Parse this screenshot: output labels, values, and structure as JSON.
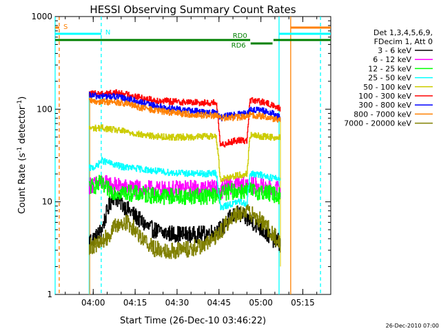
{
  "chart_data": {
    "type": "line",
    "title": "HESSI Observing Summary Count Rates",
    "xlabel": "Start Time (26-Dec-10 03:46:22)",
    "ylabel_main": "Count Rate (s",
    "ylabel_sup1": "-1",
    "ylabel_mid": " detector",
    "ylabel_sup2": "-1",
    "ylabel_end": ")",
    "y_scale": "log",
    "ylim": [
      1,
      1000
    ],
    "xlim": [
      "03:46:22",
      "05:25:00"
    ],
    "x_ticks": [
      "04:00",
      "04:15",
      "04:30",
      "04:45",
      "05:00",
      "05:15"
    ],
    "y_ticks": [
      "1",
      "10",
      "100",
      "1000"
    ],
    "legend": {
      "position": "right",
      "header_line1": "Det 1,3,4,5,6,9,",
      "header_line2": "FDecim 1, Att 0"
    },
    "timestamp": "26-Dec-2010 07:00",
    "series": [
      {
        "name": "3 - 6 keV",
        "color": "#000000",
        "points": [
          [
            "03:58:30",
            3.8
          ],
          [
            "04:01:00",
            4.2
          ],
          [
            "04:03:00",
            5.0
          ],
          [
            "04:05:00",
            8.0
          ],
          [
            "04:07:00",
            11.5
          ],
          [
            "04:09:00",
            10.5
          ],
          [
            "04:11:00",
            9.0
          ],
          [
            "04:14:00",
            7.5
          ],
          [
            "04:17:00",
            6.2
          ],
          [
            "04:20:00",
            5.2
          ],
          [
            "04:25:00",
            4.6
          ],
          [
            "04:30:00",
            4.5
          ],
          [
            "04:35:00",
            4.4
          ],
          [
            "04:40:00",
            4.5
          ],
          [
            "04:44:00",
            4.8
          ],
          [
            "04:47:00",
            5.5
          ],
          [
            "04:49:00",
            6.8
          ],
          [
            "04:52:00",
            7.5
          ],
          [
            "04:55:00",
            6.5
          ],
          [
            "04:58:00",
            5.8
          ],
          [
            "05:01:00",
            4.8
          ],
          [
            "05:04:00",
            4.0
          ],
          [
            "05:07:00",
            3.6
          ]
        ]
      },
      {
        "name": "6 - 12 keV",
        "color": "#ff00ff",
        "points": [
          [
            "03:58:30",
            15
          ],
          [
            "04:01:00",
            15.5
          ],
          [
            "04:03:00",
            16
          ],
          [
            "04:06:00",
            15.5
          ],
          [
            "04:10:00",
            14.5
          ],
          [
            "04:15:00",
            14
          ],
          [
            "04:20:00",
            13.8
          ],
          [
            "04:25:00",
            13.5
          ],
          [
            "04:30:00",
            13.8
          ],
          [
            "04:35:00",
            14
          ],
          [
            "04:40:00",
            14
          ],
          [
            "04:44:00",
            14.2
          ],
          [
            "04:45:30",
            12.8
          ],
          [
            "04:47:00",
            14.5
          ],
          [
            "04:51:00",
            15
          ],
          [
            "04:55:00",
            15.2
          ],
          [
            "04:59:00",
            15
          ],
          [
            "05:03:00",
            14
          ],
          [
            "05:07:00",
            13.5
          ]
        ]
      },
      {
        "name": "12 - 25 keV",
        "color": "#00ff00",
        "points": [
          [
            "03:58:30",
            14.5
          ],
          [
            "04:01:00",
            15
          ],
          [
            "04:02:30",
            16
          ],
          [
            "04:04:00",
            14
          ],
          [
            "04:07:00",
            13
          ],
          [
            "04:12:00",
            12.5
          ],
          [
            "04:18:00",
            12
          ],
          [
            "04:24:00",
            11.5
          ],
          [
            "04:30:00",
            11.5
          ],
          [
            "04:36:00",
            11.5
          ],
          [
            "04:42:00",
            11.5
          ],
          [
            "04:45:00",
            11.8
          ],
          [
            "04:46:00",
            12.5
          ],
          [
            "04:50:00",
            13
          ],
          [
            "04:55:00",
            13.2
          ],
          [
            "05:00:00",
            12.8
          ],
          [
            "05:04:00",
            12.2
          ],
          [
            "05:07:00",
            11.5
          ]
        ]
      },
      {
        "name": "25 - 50 keV",
        "color": "#00ffff",
        "points": [
          [
            "03:58:30",
            23
          ],
          [
            "04:01:00",
            24
          ],
          [
            "04:03:00",
            28
          ],
          [
            "04:06:00",
            26
          ],
          [
            "04:10:00",
            24
          ],
          [
            "04:15:00",
            23
          ],
          [
            "04:20:00",
            22
          ],
          [
            "04:25:00",
            21
          ],
          [
            "04:30:00",
            20.5
          ],
          [
            "04:35:00",
            20.2
          ],
          [
            "04:40:00",
            20
          ],
          [
            "04:44:00",
            20.5
          ],
          [
            "04:45:30",
            8.5
          ],
          [
            "04:48:00",
            9.2
          ],
          [
            "04:52:00",
            10
          ],
          [
            "04:55:00",
            9.6
          ],
          [
            "04:56:00",
            20
          ],
          [
            "05:00:00",
            19.5
          ],
          [
            "05:03:00",
            18.5
          ],
          [
            "05:07:00",
            17.5
          ]
        ]
      },
      {
        "name": "50 - 100 keV",
        "color": "#cccc00",
        "points": [
          [
            "03:58:30",
            62
          ],
          [
            "04:03:00",
            63
          ],
          [
            "04:07:00",
            60
          ],
          [
            "04:12:00",
            57
          ],
          [
            "04:17:00",
            53
          ],
          [
            "04:22:00",
            51
          ],
          [
            "04:28:00",
            50
          ],
          [
            "04:34:00",
            50
          ],
          [
            "04:40:00",
            51
          ],
          [
            "04:44:00",
            51
          ],
          [
            "04:45:30",
            17.5
          ],
          [
            "04:50:00",
            19
          ],
          [
            "04:55:00",
            20
          ],
          [
            "04:56:00",
            52
          ],
          [
            "05:00:00",
            51
          ],
          [
            "05:04:00",
            50
          ],
          [
            "05:07:00",
            49
          ]
        ]
      },
      {
        "name": "100 - 300 keV",
        "color": "#ff0000",
        "points": [
          [
            "03:58:30",
            145
          ],
          [
            "04:03:00",
            148
          ],
          [
            "04:08:00",
            150
          ],
          [
            "04:12:00",
            145
          ],
          [
            "04:17:00",
            133
          ],
          [
            "04:22:00",
            125
          ],
          [
            "04:28:00",
            121
          ],
          [
            "04:34:00",
            119
          ],
          [
            "04:40:00",
            117
          ],
          [
            "04:44:00",
            117
          ],
          [
            "04:45:30",
            40
          ],
          [
            "04:48:00",
            44
          ],
          [
            "04:52:00",
            46
          ],
          [
            "04:55:00",
            46
          ],
          [
            "04:56:00",
            125
          ],
          [
            "05:00:00",
            120
          ],
          [
            "05:04:00",
            111
          ],
          [
            "05:07:00",
            100
          ]
        ]
      },
      {
        "name": "300 - 800 keV",
        "color": "#0000ff",
        "points": [
          [
            "03:58:30",
            140
          ],
          [
            "04:03:00",
            138
          ],
          [
            "04:08:00",
            136
          ],
          [
            "04:12:00",
            130
          ],
          [
            "04:17:00",
            118
          ],
          [
            "04:22:00",
            108
          ],
          [
            "04:28:00",
            101
          ],
          [
            "04:34:00",
            97
          ],
          [
            "04:40:00",
            93
          ],
          [
            "04:44:00",
            91
          ],
          [
            "04:45:30",
            80
          ],
          [
            "04:48:00",
            85
          ],
          [
            "04:52:00",
            88
          ],
          [
            "04:55:00",
            90
          ],
          [
            "04:56:00",
            100
          ],
          [
            "05:00:00",
            97
          ],
          [
            "05:04:00",
            90
          ],
          [
            "05:07:00",
            80
          ]
        ]
      },
      {
        "name": "800 - 7000 keV",
        "color": "#ff8000",
        "points": [
          [
            "03:58:30",
            122
          ],
          [
            "04:03:00",
            121
          ],
          [
            "04:08:00",
            119
          ],
          [
            "04:12:00",
            114
          ],
          [
            "04:17:00",
            104
          ],
          [
            "04:22:00",
            97
          ],
          [
            "04:28:00",
            92
          ],
          [
            "04:34:00",
            88
          ],
          [
            "04:40:00",
            86
          ],
          [
            "04:44:00",
            85
          ],
          [
            "04:45:30",
            80
          ],
          [
            "04:48:00",
            81
          ],
          [
            "04:52:00",
            82
          ],
          [
            "04:55:00",
            83
          ],
          [
            "04:56:00",
            87
          ],
          [
            "05:00:00",
            84
          ],
          [
            "05:04:00",
            80
          ],
          [
            "05:07:00",
            75
          ]
        ]
      },
      {
        "name": "7000 - 20000 keV",
        "color": "#808000",
        "points": [
          [
            "03:58:30",
            3.3
          ],
          [
            "04:02:00",
            3.5
          ],
          [
            "04:05:00",
            4.2
          ],
          [
            "04:08:00",
            5.5
          ],
          [
            "04:12:00",
            6.0
          ],
          [
            "04:15:00",
            5.0
          ],
          [
            "04:18:00",
            3.9
          ],
          [
            "04:22:00",
            3.1
          ],
          [
            "04:26:00",
            3.0
          ],
          [
            "04:30:00",
            3.0
          ],
          [
            "04:34:00",
            3.1
          ],
          [
            "04:38:00",
            3.3
          ],
          [
            "04:42:00",
            3.7
          ],
          [
            "04:45:00",
            4.6
          ],
          [
            "04:48:00",
            6.0
          ],
          [
            "04:51:00",
            7.3
          ],
          [
            "04:54:00",
            7.9
          ],
          [
            "04:57:00",
            7.2
          ],
          [
            "05:00:00",
            6.2
          ],
          [
            "05:03:00",
            5.0
          ],
          [
            "05:05:00",
            4.2
          ],
          [
            "05:07:00",
            3.4
          ]
        ]
      }
    ],
    "markers": {
      "saa_label": "S",
      "night_label": "N",
      "rd0_label": "RD0",
      "rd6_label": "RD6",
      "saa_color": "#ff8000",
      "night_color": "#00ffff",
      "decim_color": "#008000",
      "night_intervals": [
        [
          "03:46:22",
          "04:02:52"
        ],
        [
          "05:06:30",
          "05:25:00"
        ]
      ],
      "saa_intervals": [
        [
          "03:46:22",
          "03:47:50"
        ],
        [
          "05:10:40",
          "05:25:00"
        ]
      ],
      "rd0_intervals": [
        [
          "03:46:22",
          "04:56:10"
        ],
        [
          "05:04:30",
          "05:25:00"
        ]
      ],
      "rd6_interval": [
        "04:56:20",
        "05:04:10"
      ],
      "night_vlines": [
        "03:46:22",
        "04:02:52",
        "05:06:30",
        "05:21:20"
      ],
      "night_vlines_dashed": [
        "04:02:52",
        "05:21:20"
      ],
      "saa_vlines": [
        "03:47:50",
        "05:10:40"
      ],
      "saa_vlines_dashed": [
        "03:47:50"
      ],
      "data_start": "03:58:30",
      "data_end": "05:07:00"
    }
  }
}
